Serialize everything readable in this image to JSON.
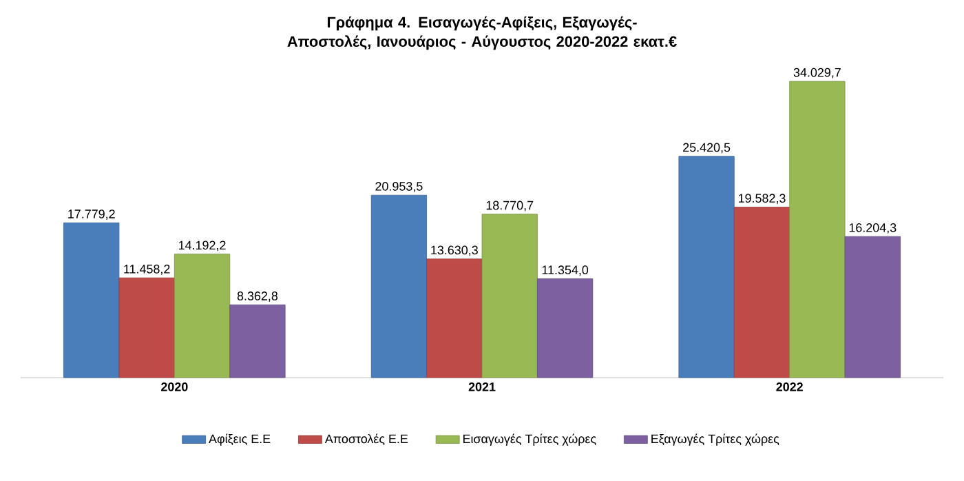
{
  "chart_data": {
    "type": "bar",
    "title": "Γράφημα 4. Εισαγωγές-Αφίξεις, Εξαγωγές-Αποστολές, Ιανουάριος - Αύγουστος 2020-2022 εκατ.€",
    "categories": [
      "2020",
      "2021",
      "2022"
    ],
    "series": [
      {
        "name": "Αφίξεις Ε.Ε",
        "color": "#4a7ebb",
        "values": [
          17779.2,
          20953.5,
          25420.5
        ],
        "value_labels": [
          "17.779,2",
          "20.953,5",
          "25.420,5"
        ]
      },
      {
        "name": "Αποστολές Ε.Ε",
        "color": "#be4b48",
        "values": [
          11458.2,
          13630.3,
          19582.3
        ],
        "value_labels": [
          "11.458,2",
          "13.630,3",
          "19.582,3"
        ]
      },
      {
        "name": "Εισαγωγές Τρίτες χώρες",
        "color": "#98b954",
        "values": [
          14192.2,
          18770.7,
          34029.7
        ],
        "value_labels": [
          "14.192,2",
          "18.770,7",
          "34.029,7"
        ]
      },
      {
        "name": "Εξαγωγές Τρίτες χώρες",
        "color": "#7d60a0",
        "values": [
          8362.8,
          11354.0,
          16204.3
        ],
        "value_labels": [
          "8.362,8",
          "11.354,0",
          "16.204,3"
        ]
      }
    ],
    "legend": "bottom"
  }
}
